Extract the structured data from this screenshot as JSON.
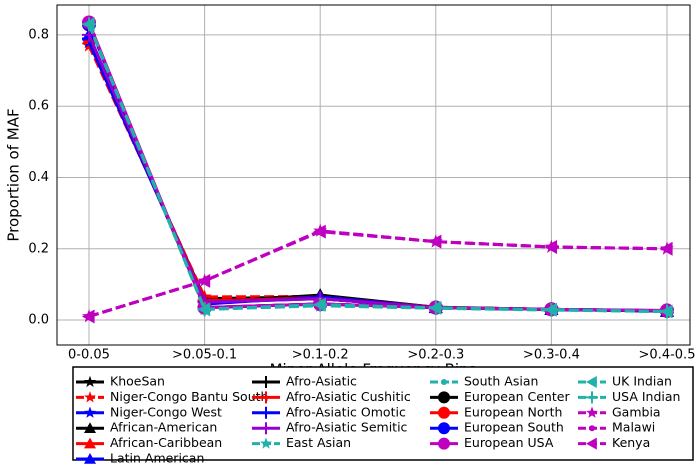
{
  "chart_data": {
    "type": "line",
    "x_label": "Minor Allele Frequency Bins",
    "y_label": "Proportion of MAF",
    "categories": [
      "0-0.05",
      ">0.05-0.1",
      ">0.1-0.2",
      ">0.2-0.3",
      ">0.3-0.4",
      ">0.4-0.5"
    ],
    "ylim": [
      -0.07,
      0.884
    ],
    "yticks": [
      {
        "value": 0,
        "label": "0.0"
      },
      0.2,
      0.4,
      0.6,
      0.8
    ],
    "grid": true,
    "legend": "below",
    "series": [
      {
        "name": "KhoeSan",
        "color": "#000000",
        "marker": "star",
        "dash": "solid",
        "values": [
          0.78,
          0.06,
          0.065,
          0.035,
          0.03,
          0.025
        ]
      },
      {
        "name": "Niger-Congo Bantu South",
        "color": "#ff0000",
        "marker": "star",
        "dash": "dashed",
        "values": [
          0.77,
          0.065,
          0.066,
          0.036,
          0.03,
          0.025
        ]
      },
      {
        "name": "Niger-Congo West",
        "color": "#0000ff",
        "marker": "star",
        "dash": "solid",
        "values": [
          0.78,
          0.055,
          0.06,
          0.035,
          0.03,
          0.025
        ]
      },
      {
        "name": "African-American",
        "color": "#000000",
        "marker": "triangle",
        "dash": "solid",
        "values": [
          0.79,
          0.05,
          0.07,
          0.036,
          0.03,
          0.025
        ]
      },
      {
        "name": "African-Caribbean",
        "color": "#ff0000",
        "marker": "triangle",
        "dash": "solid",
        "values": [
          0.79,
          0.05,
          0.065,
          0.036,
          0.03,
          0.025
        ]
      },
      {
        "name": "Latin American",
        "color": "#0000ff",
        "marker": "triangle",
        "dash": "solid",
        "values": [
          0.8,
          0.045,
          0.065,
          0.035,
          0.03,
          0.025
        ]
      },
      {
        "name": "Afro-Asiatic",
        "color": "#000000",
        "marker": "plus",
        "dash": "solid",
        "values": [
          0.79,
          0.055,
          0.06,
          0.035,
          0.03,
          0.025
        ]
      },
      {
        "name": "Afro-Asiatic Cushitic",
        "color": "#ff0000",
        "marker": "plus",
        "dash": "solid",
        "values": [
          0.79,
          0.055,
          0.06,
          0.035,
          0.03,
          0.025
        ]
      },
      {
        "name": "Afro-Asiatic Omotic",
        "color": "#0000ff",
        "marker": "plus",
        "dash": "solid",
        "values": [
          0.79,
          0.05,
          0.06,
          0.035,
          0.03,
          0.025
        ]
      },
      {
        "name": "Afro-Asiatic Semitic",
        "color": "#9400d3",
        "marker": "plus",
        "dash": "solid",
        "values": [
          0.8,
          0.05,
          0.06,
          0.035,
          0.03,
          0.025
        ]
      },
      {
        "name": "East Asian",
        "color": "#20b2aa",
        "marker": "star",
        "dash": "dashed",
        "values": [
          0.83,
          0.03,
          0.04,
          0.033,
          0.028,
          0.024
        ]
      },
      {
        "name": "South Asian",
        "color": "#20b2aa",
        "marker": "dot",
        "dash": "dashed",
        "values": [
          0.83,
          0.03,
          0.042,
          0.034,
          0.029,
          0.024
        ]
      },
      {
        "name": "European Center",
        "color": "#000000",
        "marker": "circle",
        "dash": "solid",
        "values": [
          0.83,
          0.035,
          0.045,
          0.035,
          0.03,
          0.026
        ]
      },
      {
        "name": "European North",
        "color": "#ff0000",
        "marker": "circle",
        "dash": "solid",
        "values": [
          0.83,
          0.035,
          0.045,
          0.035,
          0.03,
          0.026
        ]
      },
      {
        "name": "European South",
        "color": "#0000ff",
        "marker": "circle",
        "dash": "solid",
        "values": [
          0.83,
          0.035,
          0.045,
          0.035,
          0.03,
          0.026
        ]
      },
      {
        "name": "European USA",
        "color": "#c000c0",
        "marker": "circle",
        "dash": "solid",
        "values": [
          0.835,
          0.035,
          0.045,
          0.035,
          0.03,
          0.027
        ]
      },
      {
        "name": "UK Indian",
        "color": "#20b2aa",
        "marker": "left",
        "dash": "dashed",
        "values": [
          0.83,
          0.03,
          0.043,
          0.034,
          0.029,
          0.024
        ]
      },
      {
        "name": "USA Indian",
        "color": "#20b2aa",
        "marker": "plus",
        "dash": "dashed",
        "values": [
          0.83,
          0.03,
          0.043,
          0.034,
          0.029,
          0.024
        ]
      },
      {
        "name": "Gambia",
        "color": "#c000c0",
        "marker": "star",
        "dash": "dashed",
        "values": [
          0.01,
          0.11,
          0.25,
          0.22,
          0.205,
          0.2
        ]
      },
      {
        "name": "Malawi",
        "color": "#c000c0",
        "marker": "dot",
        "dash": "dashed",
        "values": [
          0.01,
          0.11,
          0.25,
          0.22,
          0.205,
          0.2
        ]
      },
      {
        "name": "Kenya",
        "color": "#c000c0",
        "marker": "left",
        "dash": "dashed",
        "values": [
          0.01,
          0.11,
          0.248,
          0.22,
          0.205,
          0.2
        ]
      }
    ]
  }
}
